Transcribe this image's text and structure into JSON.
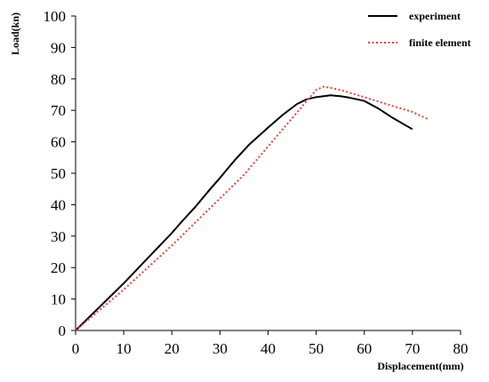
{
  "chart_data": {
    "type": "line",
    "title": "",
    "xlabel": "Displacement(mm)",
    "ylabel": "Load(kn)",
    "xlim": [
      0,
      80
    ],
    "ylim": [
      0,
      100
    ],
    "xticks": [
      "0",
      "10",
      "20",
      "30",
      "40",
      "50",
      "60",
      "70",
      "80"
    ],
    "yticks": [
      "0",
      "10",
      "20",
      "30",
      "40",
      "50",
      "60",
      "70",
      "80",
      "90",
      "100"
    ],
    "grid": false,
    "legend_position": "top-right",
    "series": [
      {
        "name": "experiment",
        "color": "#000000",
        "style": "solid",
        "x": [
          0,
          5,
          10,
          15,
          20,
          22,
          25,
          28,
          30,
          33,
          36,
          40,
          43,
          46,
          48,
          50,
          53,
          55,
          57,
          60,
          63,
          66,
          70
        ],
        "y": [
          0,
          7.5,
          15,
          23,
          31,
          34.5,
          39.5,
          45,
          48.5,
          54,
          59,
          64.5,
          68.5,
          72,
          73.5,
          74.2,
          74.8,
          74.5,
          74,
          73,
          70.5,
          67.5,
          64
        ]
      },
      {
        "name": "finite element",
        "color": "#e0453a",
        "style": "dotted",
        "x": [
          0,
          5,
          10,
          15,
          20,
          25,
          30,
          35,
          40,
          45,
          50,
          51.5,
          52.5,
          55,
          60,
          65,
          70,
          73.5
        ],
        "y": [
          0,
          6.5,
          13,
          20,
          27,
          34.5,
          42,
          49.5,
          58.5,
          67.5,
          76.5,
          77.5,
          77.3,
          76.5,
          74.2,
          71.8,
          69.5,
          67
        ]
      }
    ]
  }
}
